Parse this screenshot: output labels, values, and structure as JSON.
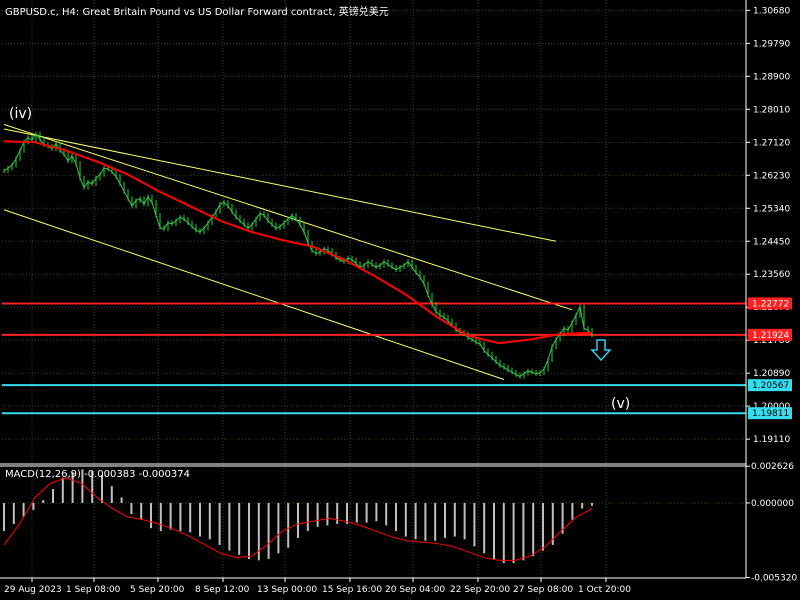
{
  "window": {
    "title": "GBPUSD.c, H4:  Great Britain Pound vs US Dollar Forward contract, 英镑兑美元"
  },
  "chart_data": {
    "type": "line",
    "symbol": "GBPUSD.c",
    "timeframe": "H4",
    "colors": {
      "background": "#000000",
      "grid": "#2e4a2e",
      "price": "#2ecc40",
      "ma": "#ff0000",
      "channel": "#ffff66",
      "resistance": "#ff2020",
      "support": "#33ddee",
      "arrow": "#33ccee",
      "histogram": "#c0c0c0",
      "signal": "#ff0000"
    },
    "price_axis": {
      "ylim": [
        1.1844,
        1.3096
      ],
      "ticks": [
        "1.30680",
        "1.29790",
        "1.28900",
        "1.28010",
        "1.27120",
        "1.26230",
        "1.25340",
        "1.24450",
        "1.23560",
        "1.22670",
        "1.21780",
        "1.20890",
        "1.20000",
        "1.19110"
      ]
    },
    "time_axis": {
      "labels": [
        "29 Aug 2023",
        "1 Sep 08:00",
        "5 Sep 20:00",
        "8 Sep 12:00",
        "13 Sep 00:00",
        "15 Sep 16:00",
        "20 Sep 04:00",
        "22 Sep 20:00",
        "27 Sep 08:00",
        "1 Oct 20:00"
      ],
      "bars_visible": 148
    },
    "price_series": [
      1.2635,
      1.2642,
      1.265,
      1.2668,
      1.269,
      1.2712,
      1.2725,
      1.2718,
      1.2735,
      1.272,
      1.2705,
      1.2702,
      1.2695,
      1.2708,
      1.269,
      1.268,
      1.2662,
      1.2675,
      1.2655,
      1.2615,
      1.259,
      1.2605,
      1.26,
      1.2615,
      1.2625,
      1.2642,
      1.264,
      1.2632,
      1.262,
      1.26,
      1.258,
      1.256,
      1.254,
      1.2555,
      1.256,
      1.2545,
      1.2565,
      1.255,
      1.2515,
      1.2482,
      1.2478,
      1.2495,
      1.2492,
      1.25,
      1.251,
      1.2505,
      1.2495,
      1.2485,
      1.2475,
      1.247,
      1.248,
      1.2495,
      1.251,
      1.2525,
      1.2545,
      1.255,
      1.254,
      1.2525,
      1.251,
      1.25,
      1.249,
      1.248,
      1.249,
      1.2505,
      1.252,
      1.2515,
      1.25,
      1.249,
      1.248,
      1.2485,
      1.2495,
      1.2505,
      1.2515,
      1.2505,
      1.249,
      1.247,
      1.244,
      1.242,
      1.2412,
      1.2415,
      1.2425,
      1.242,
      1.241,
      1.24,
      1.2395,
      1.239,
      1.24,
      1.2395,
      1.2385,
      1.2375,
      1.238,
      1.239,
      1.2382,
      1.2375,
      1.238,
      1.239,
      1.2382,
      1.2375,
      1.2368,
      1.2375,
      1.238,
      1.239,
      1.2375,
      1.236,
      1.2348,
      1.233,
      1.23,
      1.2275,
      1.2255,
      1.2245,
      1.224,
      1.223,
      1.222,
      1.2205,
      1.22,
      1.2195,
      1.2185,
      1.218,
      1.2172,
      1.2168,
      1.215,
      1.214,
      1.213,
      1.212,
      1.211,
      1.2105,
      1.2098,
      1.2092,
      1.2085,
      1.208,
      1.2088,
      1.2095,
      1.2092,
      1.2087,
      1.209,
      1.21,
      1.2125,
      1.216,
      1.218,
      1.2195,
      1.221,
      1.2205,
      1.2225,
      1.2245,
      1.2268,
      1.221,
      1.2205,
      1.2192
    ],
    "ma_series": [
      1.2715,
      1.2712,
      1.269,
      1.266,
      1.2625,
      1.258,
      1.254,
      1.25,
      1.247,
      1.2448,
      1.243,
      1.2395,
      1.235,
      1.23,
      1.224,
      1.219,
      1.217,
      1.218,
      1.2195,
      1.2198
    ],
    "channel_lines": [
      {
        "from": {
          "bar": 0,
          "price": 1.2748
        },
        "to": {
          "bar": 138,
          "price": 1.2445
        }
      },
      {
        "from": {
          "bar": 0,
          "price": 1.276
        },
        "to": {
          "bar": 142,
          "price": 1.226
        }
      },
      {
        "from": {
          "bar": 0,
          "price": 1.253
        },
        "to": {
          "bar": 125,
          "price": 1.2072
        }
      }
    ],
    "levels": [
      {
        "label": "1.22772",
        "value": 1.22772,
        "kind": "resistance"
      },
      {
        "label": "1.21924",
        "value": 1.21924,
        "kind": "resistance"
      },
      {
        "label": "1.20567",
        "value": 1.20567,
        "kind": "support"
      },
      {
        "label": "1.19811",
        "value": 1.19811,
        "kind": "support"
      }
    ],
    "annotations": [
      {
        "text": "(iv)",
        "kind": "wave"
      },
      {
        "text": "(v)",
        "kind": "wave"
      },
      {
        "kind": "arrow-down"
      }
    ],
    "macd": {
      "title": "MACD(12,26,9) -0.000383 -0.000374",
      "ylim": [
        -0.00536,
        0.00264
      ],
      "ticks": [
        "0.002626",
        "0.000000",
        "-0.005320"
      ],
      "histogram": [
        -0.002,
        -0.0015,
        -0.001,
        -0.0005,
        0.0002,
        0.001,
        0.0018,
        0.0022,
        0.0024,
        0.0023,
        0.002,
        0.0012,
        0.0004,
        -0.0008,
        -0.0012,
        -0.0018,
        -0.002,
        -0.0019,
        -0.002,
        -0.0021,
        -0.0024,
        -0.0026,
        -0.003,
        -0.0034,
        -0.0037,
        -0.004,
        -0.0041,
        -0.004,
        -0.0036,
        -0.0032,
        -0.0025,
        -0.002,
        -0.0017,
        -0.0016,
        -0.0015,
        -0.0015,
        -0.0014,
        -0.0014,
        -0.0013,
        -0.0016,
        -0.002,
        -0.0024,
        -0.0026,
        -0.0027,
        -0.0027,
        -0.0025,
        -0.0024,
        -0.0026,
        -0.0031,
        -0.0036,
        -0.004,
        -0.0043,
        -0.0043,
        -0.0041,
        -0.0038,
        -0.0034,
        -0.003,
        -0.0022,
        -0.0012,
        -0.0004,
        -0.0002
      ],
      "signal": [
        -0.003,
        -0.0015,
        0.0004,
        0.0014,
        0.0018,
        0.0014,
        0.0004,
        -0.0004,
        -0.001,
        -0.0012,
        -0.0015,
        -0.0019,
        -0.0024,
        -0.003,
        -0.0036,
        -0.0039,
        -0.0038,
        -0.003,
        -0.002,
        -0.0015,
        -0.0013,
        -0.0011,
        -0.0013,
        -0.0016,
        -0.002,
        -0.0024,
        -0.0027,
        -0.0028,
        -0.0029,
        -0.0031,
        -0.0035,
        -0.0039,
        -0.0041,
        -0.0041,
        -0.0038,
        -0.0031,
        -0.002,
        -0.001,
        -0.0004
      ]
    }
  }
}
